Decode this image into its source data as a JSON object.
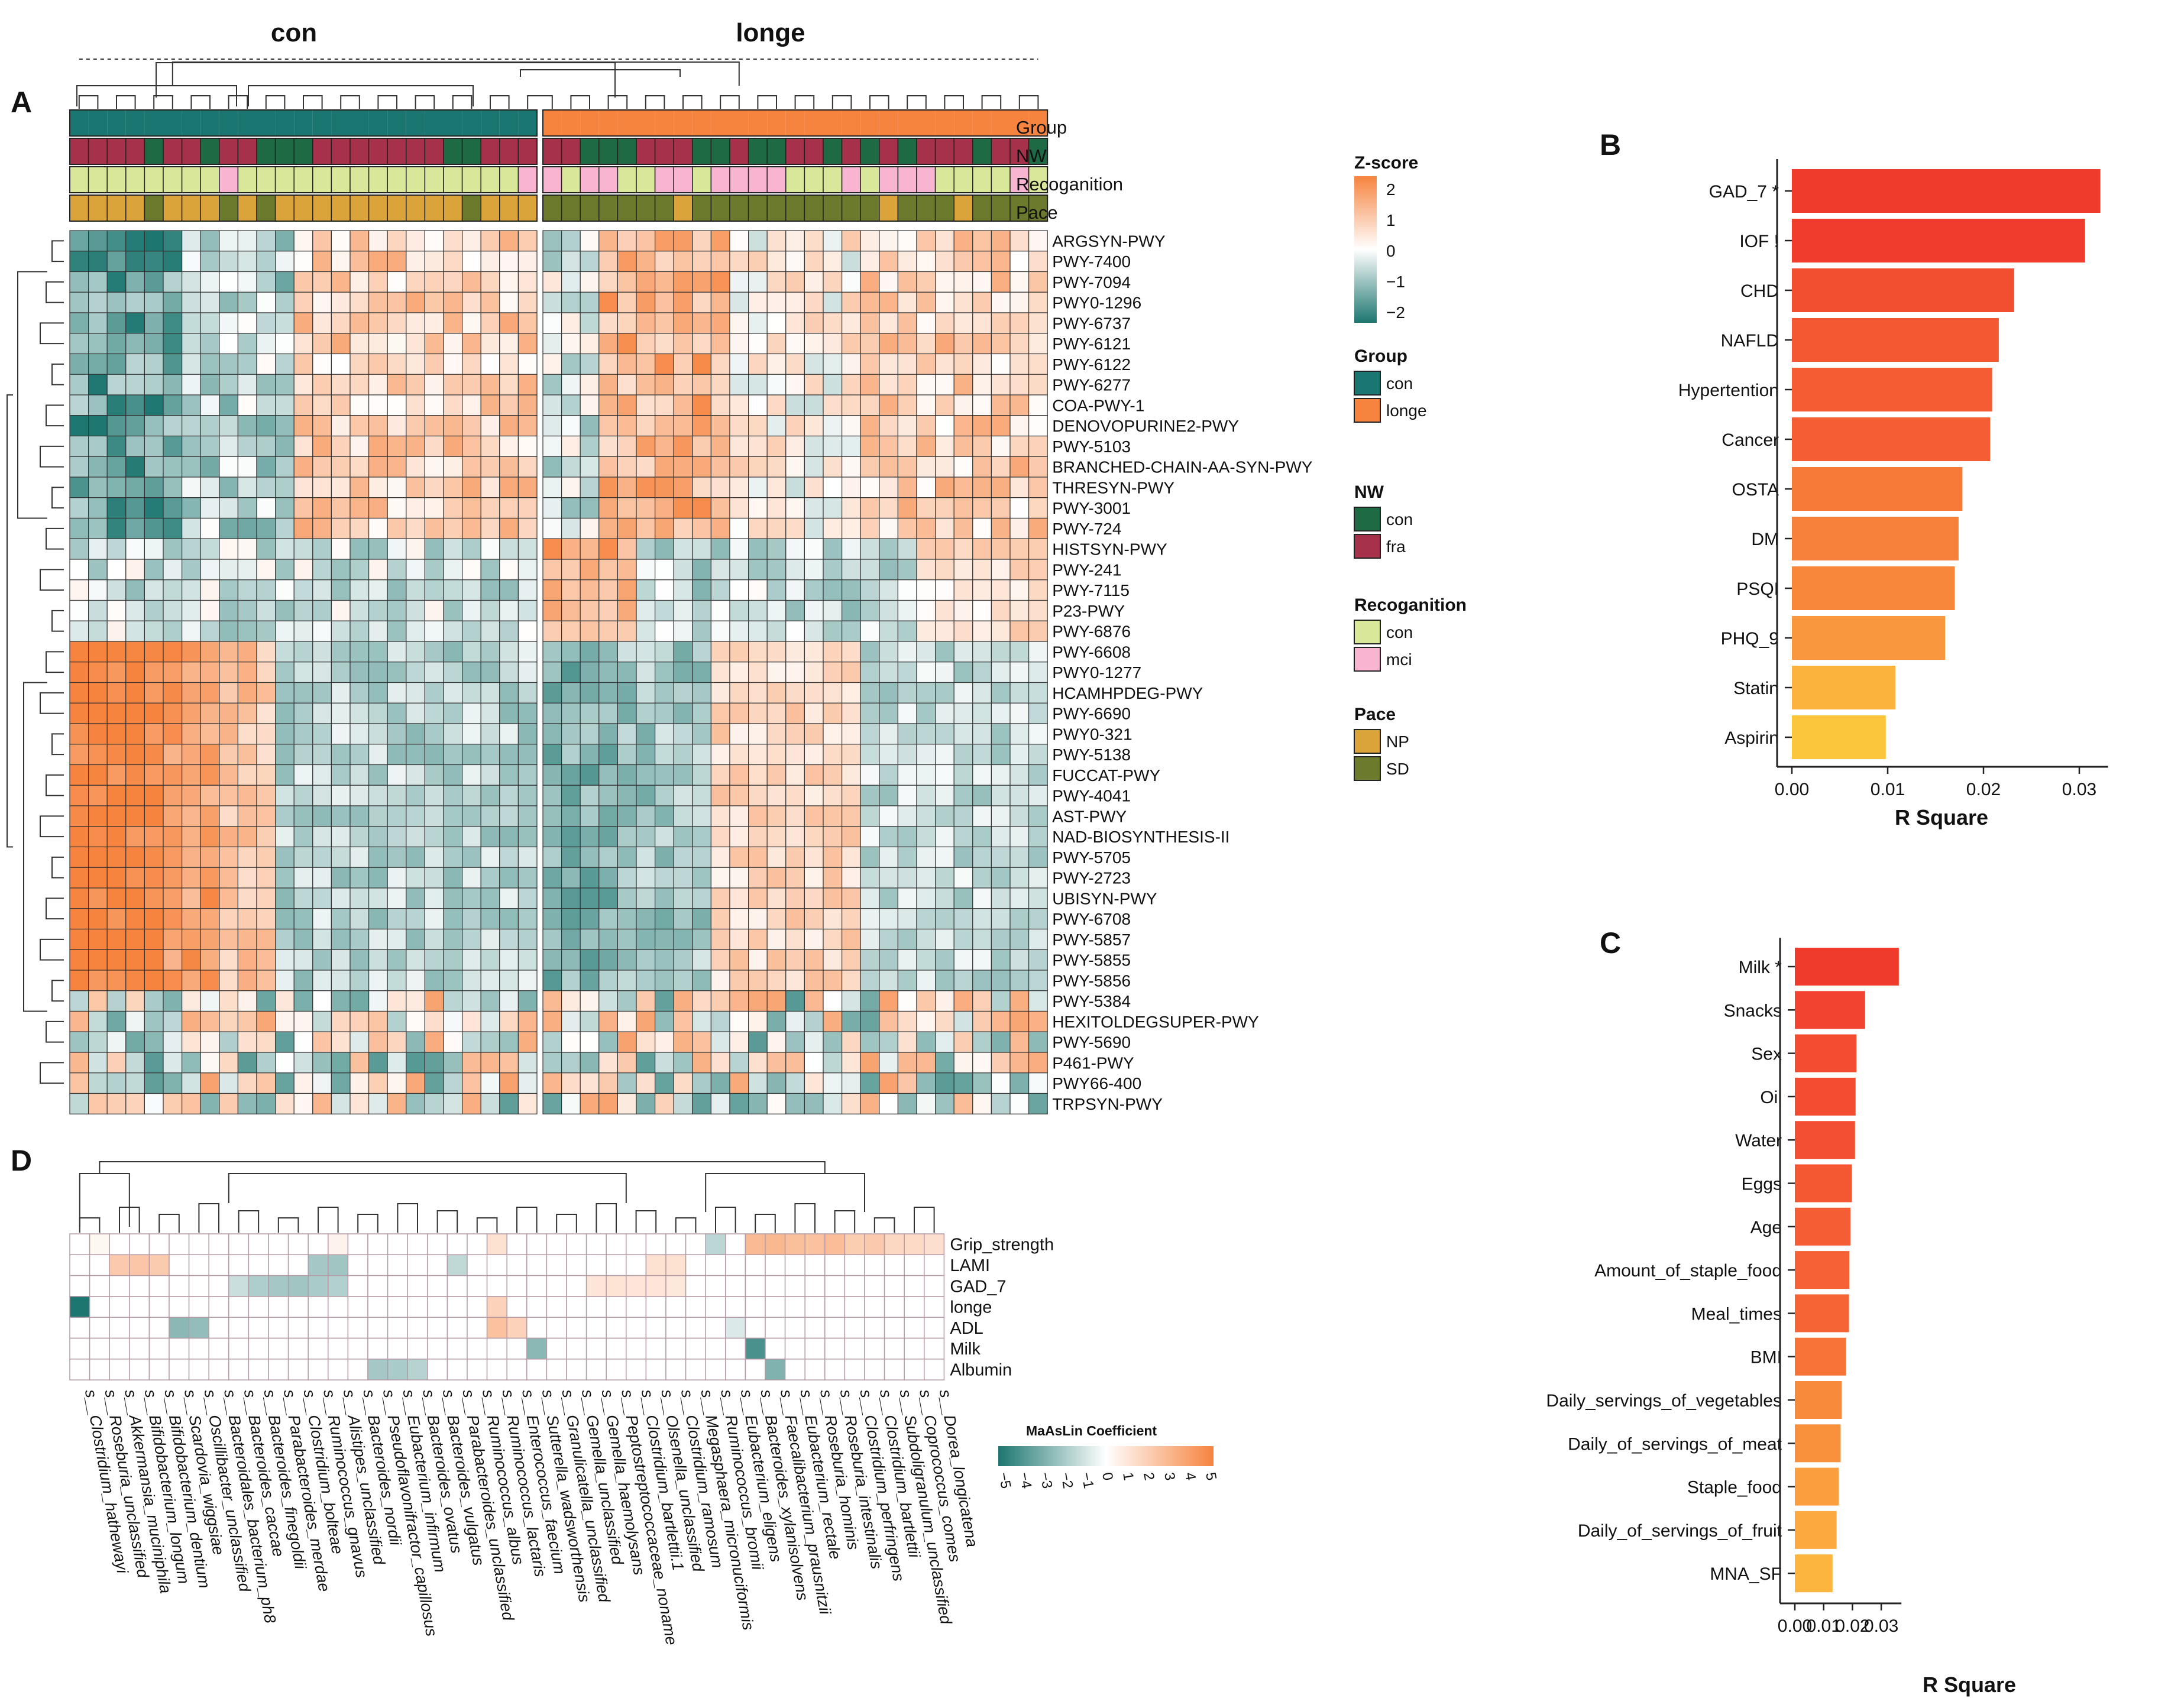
{
  "panels": {
    "a": "A",
    "b": "B",
    "c": "C",
    "d": "D"
  },
  "chart_data": [
    {
      "panel": "A",
      "type": "heatmap",
      "column_groups": [
        "con",
        "longe"
      ],
      "con_columns": 25,
      "longe_columns": 27,
      "annotation_tracks": [
        "Group",
        "NW",
        "Recoganition",
        "Pace"
      ],
      "annotations": {
        "NW": "FFFFCFFCFFCCCFFFFFFFCCFFFFF|CCCFFFCCFCCFFCFCFCFFFCFFCCF",
        "Recoganition": "LLLLLLLLMLLLLLLLLLLLLLLLM|MLMMLLMMLMMMMLLLMLMMMLLLLML",
        "Pace": "NNNNSNNNSNSNNNNNNNNNNSNNN|SSSSSSSNSSSSSSSSSSNSSSNSSSS"
      },
      "rows": [
        "ARGSYN-PWY",
        "PWY-7400",
        "PWY-7094",
        "PWY0-1296",
        "PWY-6737",
        "PWY-6121",
        "PWY-6122",
        "PWY-6277",
        "COA-PWY-1",
        "DENOVOPURINE2-PWY",
        "PWY-5103",
        "BRANCHED-CHAIN-AA-SYN-PWY",
        "THRESYN-PWY",
        "PWY-3001",
        "PWY-724",
        "HISTSYN-PWY",
        "PWY-241",
        "PWY-7115",
        "P23-PWY",
        "PWY-6876",
        "PWY-6608",
        "PWY0-1277",
        "HCAMHPDEG-PWY",
        "PWY-6690",
        "PWY0-321",
        "PWY-5138",
        "FUCCAT-PWY",
        "PWY-4041",
        "AST-PWY",
        "NAD-BIOSYNTHESIS-II",
        "PWY-5705",
        "PWY-2723",
        "UBISYN-PWY",
        "PWY-6708",
        "PWY-5857",
        "PWY-5855",
        "PWY-5856",
        "PWY-5384",
        "HEXITOLDEGSUPER-PWY",
        "PWY-5690",
        "P461-PWY",
        "PWY66-400",
        "TRPSYN-PWY"
      ],
      "z_range": [
        -2,
        2
      ],
      "legend": {
        "zscore_title": "Z-score",
        "zscore_ticks": [
          "2",
          "1",
          "0",
          "−1",
          "−2"
        ],
        "group_title": "Group",
        "group_items": [
          "con",
          "longe"
        ],
        "nw_title": "NW",
        "nw_items": [
          "con",
          "fra"
        ],
        "rec_title": "Recoganition",
        "rec_items": [
          "con",
          "mci"
        ],
        "pace_title": "Pace",
        "pace_items": [
          "NP",
          "SD"
        ]
      },
      "colors": {
        "con": "#1a7670",
        "longe": "#f6843f",
        "nw_con": "#1e6a45",
        "nw_fra": "#a5324a",
        "rec_con": "#d9e79a",
        "rec_mci": "#f7b5d2",
        "pace_np": "#dba43a",
        "pace_sd": "#6b7a2c",
        "low": "#1d7670",
        "mid": "#ffffff",
        "high": "#f6843f"
      }
    },
    {
      "panel": "B",
      "type": "bar",
      "orientation": "horizontal",
      "categories": [
        "GAD_7 *",
        "IOF !",
        "CHD",
        "NAFLD",
        "Hypertention",
        "Cancer",
        "OSTA",
        "DM",
        "PSQI",
        "PHQ_9",
        "Statin",
        "Aspirin"
      ],
      "values": [
        0.0322,
        0.0306,
        0.0232,
        0.0216,
        0.0209,
        0.0207,
        0.0178,
        0.0174,
        0.017,
        0.016,
        0.0108,
        0.0098
      ],
      "colors": [
        "#ef3b2c",
        "#ef3c2c",
        "#f24e30",
        "#f45833",
        "#f55c33",
        "#f55d34",
        "#f77b38",
        "#f7803a",
        "#f8873b",
        "#f9973e",
        "#fbb33e",
        "#fcc63c"
      ],
      "xlabel": "R Square",
      "x_ticks": [
        "0.00",
        "0.01",
        "0.02",
        "0.03"
      ],
      "xlim": [
        0,
        0.033
      ]
    },
    {
      "panel": "C",
      "type": "bar",
      "orientation": "horizontal",
      "categories": [
        "Milk *",
        "Snacks",
        "Sex",
        "Oil",
        "Water",
        "Eggs",
        "Age",
        "Amount_of_staple_food",
        "Meal_times",
        "BMI",
        "Daily_servings_of_vegetables",
        "Daily_of_servings_of_meat",
        "Staple_food",
        "Daily_of_servings_of_fruit",
        "MNA_SF"
      ],
      "values": [
        0.0361,
        0.0244,
        0.0214,
        0.0211,
        0.0209,
        0.0198,
        0.0193,
        0.0189,
        0.0188,
        0.0178,
        0.0163,
        0.0159,
        0.0152,
        0.0145,
        0.0131
      ],
      "colors": [
        "#ef3b2c",
        "#f14330",
        "#f24c31",
        "#f24d31",
        "#f34f32",
        "#f45833",
        "#f55d34",
        "#f66235",
        "#f66436",
        "#f77337",
        "#f88a3b",
        "#f9913c",
        "#fa9e3e",
        "#fbaa40",
        "#fcb63f"
      ],
      "xlabel": "R Square",
      "x_ticks": [
        "0.00",
        "0.01",
        "0.02",
        "0.03"
      ],
      "xlim": [
        0,
        0.037
      ]
    },
    {
      "panel": "D",
      "type": "heatmap",
      "rows": [
        "Grip_strength",
        "LAMI",
        "GAD_7",
        "longe",
        "ADL",
        "Milk",
        "Albumin"
      ],
      "columns": [
        "s__Clostridium_hathewayi",
        "s__Roseburia_unclassified",
        "s__Akkermansia_muciniphila",
        "s__Bifidobacterium_longum",
        "s__Bifidobacterium_dentium",
        "s__Scardovia_wiggsiae",
        "s__Oscillibacter_unclassified",
        "s__Bacteroidales_bacterium_ph8",
        "s__Bacteroides_caccae",
        "s__Bacteroides_finegoldii",
        "s__Parabacteroides_merdae",
        "s__Clostridium_bolteae",
        "s__Ruminococcus_gnavus",
        "s__Alistipes_unclassified",
        "s__Bacteroides_nordii",
        "s__Pseudoflavonifractor_capillosus",
        "s__Eubacterium_infirmum",
        "s__Bacteroides_ovatus",
        "s__Bacteroides_vulgatus",
        "s__Parabacteroides_unclassified",
        "s__Ruminococcus_albus",
        "s__Ruminococcus_lactaris",
        "s__Enterococcus_faecium",
        "s__Sutterella_wadsworthensis",
        "s__Granulicatella_unclassified",
        "s__Gemella_unclassified",
        "s__Gemella_haemolysans",
        "s__Peptostreptococcaceae_noname",
        "s__Clostridium_bartlettii.1",
        "s__Olsenella_unclassified",
        "s__Clostridium_ramosum",
        "s__Megasphaera_micronuciformis",
        "s__Ruminococcus_bromii",
        "s__Eubacterium_eligens",
        "s__Bacteroides_xylanisolvens",
        "s__Faecalibacterium_prausnitzii",
        "s__Eubacterium_rectale",
        "s__Roseburia_hominis",
        "s__Roseburia_intestinalis",
        "s__Clostridium_perfringens",
        "s__Clostridium_bartlettii",
        "s__Subdoligranulum_unclassified",
        "s__Coprococcus_comes",
        "s__Dorea_longicatena"
      ],
      "values": [
        [
          0,
          0.3,
          0,
          0,
          0,
          0,
          0,
          0,
          0,
          0,
          0,
          0,
          0,
          0.5,
          0,
          0,
          0,
          0,
          0,
          0,
          0,
          1.2,
          0,
          0,
          0,
          0,
          0,
          0,
          0,
          0,
          0,
          0,
          -1.5,
          0,
          2.8,
          2.9,
          2.6,
          2.5,
          2.7,
          2.0,
          2.2,
          1.6,
          1.5,
          1.3
        ],
        [
          0,
          0,
          2.2,
          2.3,
          2.1,
          0,
          0,
          0,
          0,
          0,
          0,
          0,
          -2.0,
          -2.1,
          0,
          0,
          0,
          0,
          0,
          -1.4,
          0,
          0,
          0,
          0,
          0,
          0,
          0,
          0,
          0,
          1.2,
          1.2,
          0,
          0,
          0,
          0,
          0,
          0,
          0,
          0,
          0,
          0,
          0,
          0,
          0
        ],
        [
          0,
          0,
          0,
          0,
          0,
          0,
          0,
          0,
          -1.2,
          -1.8,
          -2.0,
          -2.1,
          -1.9,
          -1.7,
          0,
          0,
          0,
          0,
          0,
          0,
          0,
          0,
          0,
          0,
          0,
          0,
          1.0,
          1.1,
          1.0,
          1.0,
          0.9,
          0,
          0,
          0,
          0,
          0,
          0,
          0,
          0,
          0,
          0,
          0,
          0,
          0
        ],
        [
          -5.2,
          0,
          0,
          0,
          0,
          0,
          0,
          0,
          0,
          0,
          0,
          0,
          0,
          0,
          0,
          0,
          0,
          0,
          0,
          0,
          0,
          1.8,
          0,
          0,
          0,
          0,
          0,
          0,
          0,
          0,
          0,
          0,
          0,
          0,
          0,
          0,
          0,
          0,
          0,
          0,
          0,
          0,
          0,
          0
        ],
        [
          0,
          0,
          0,
          0,
          0,
          -2.6,
          -2.4,
          0,
          0,
          0,
          0,
          0,
          0,
          0,
          0,
          0,
          0,
          0,
          0,
          0,
          0,
          2.5,
          1.8,
          0,
          0,
          0,
          0,
          0,
          0,
          0,
          0,
          0,
          0,
          -0.8,
          0,
          0,
          0,
          0,
          0,
          0,
          0,
          0,
          0,
          0
        ],
        [
          0,
          0,
          0,
          0,
          0,
          0,
          0,
          0,
          0,
          0,
          0,
          0,
          0,
          0,
          0,
          0,
          0,
          0,
          0,
          0,
          0,
          0,
          0,
          -2.6,
          0,
          0,
          0,
          0,
          0,
          0,
          0,
          0,
          0,
          0,
          -4.0,
          0,
          0,
          0,
          0,
          0,
          0,
          0,
          0,
          0
        ],
        [
          0,
          0,
          0,
          0,
          0,
          0,
          0,
          0,
          0,
          0,
          0,
          0,
          0,
          0,
          0,
          -2.0,
          -1.9,
          -1.6,
          0,
          0,
          0,
          0,
          0,
          0,
          0,
          0,
          0,
          0,
          0,
          0,
          0,
          0,
          0,
          0,
          0,
          -2.8,
          0,
          0,
          0,
          0,
          0,
          0,
          0,
          0
        ]
      ],
      "legend": {
        "title": "MaAsLin Coefficient",
        "ticks": [
          "−5",
          "−4",
          "−3",
          "−2",
          "−1",
          "0",
          "1",
          "2",
          "3",
          "4",
          "5"
        ]
      },
      "range": [
        -5,
        5
      ]
    }
  ]
}
